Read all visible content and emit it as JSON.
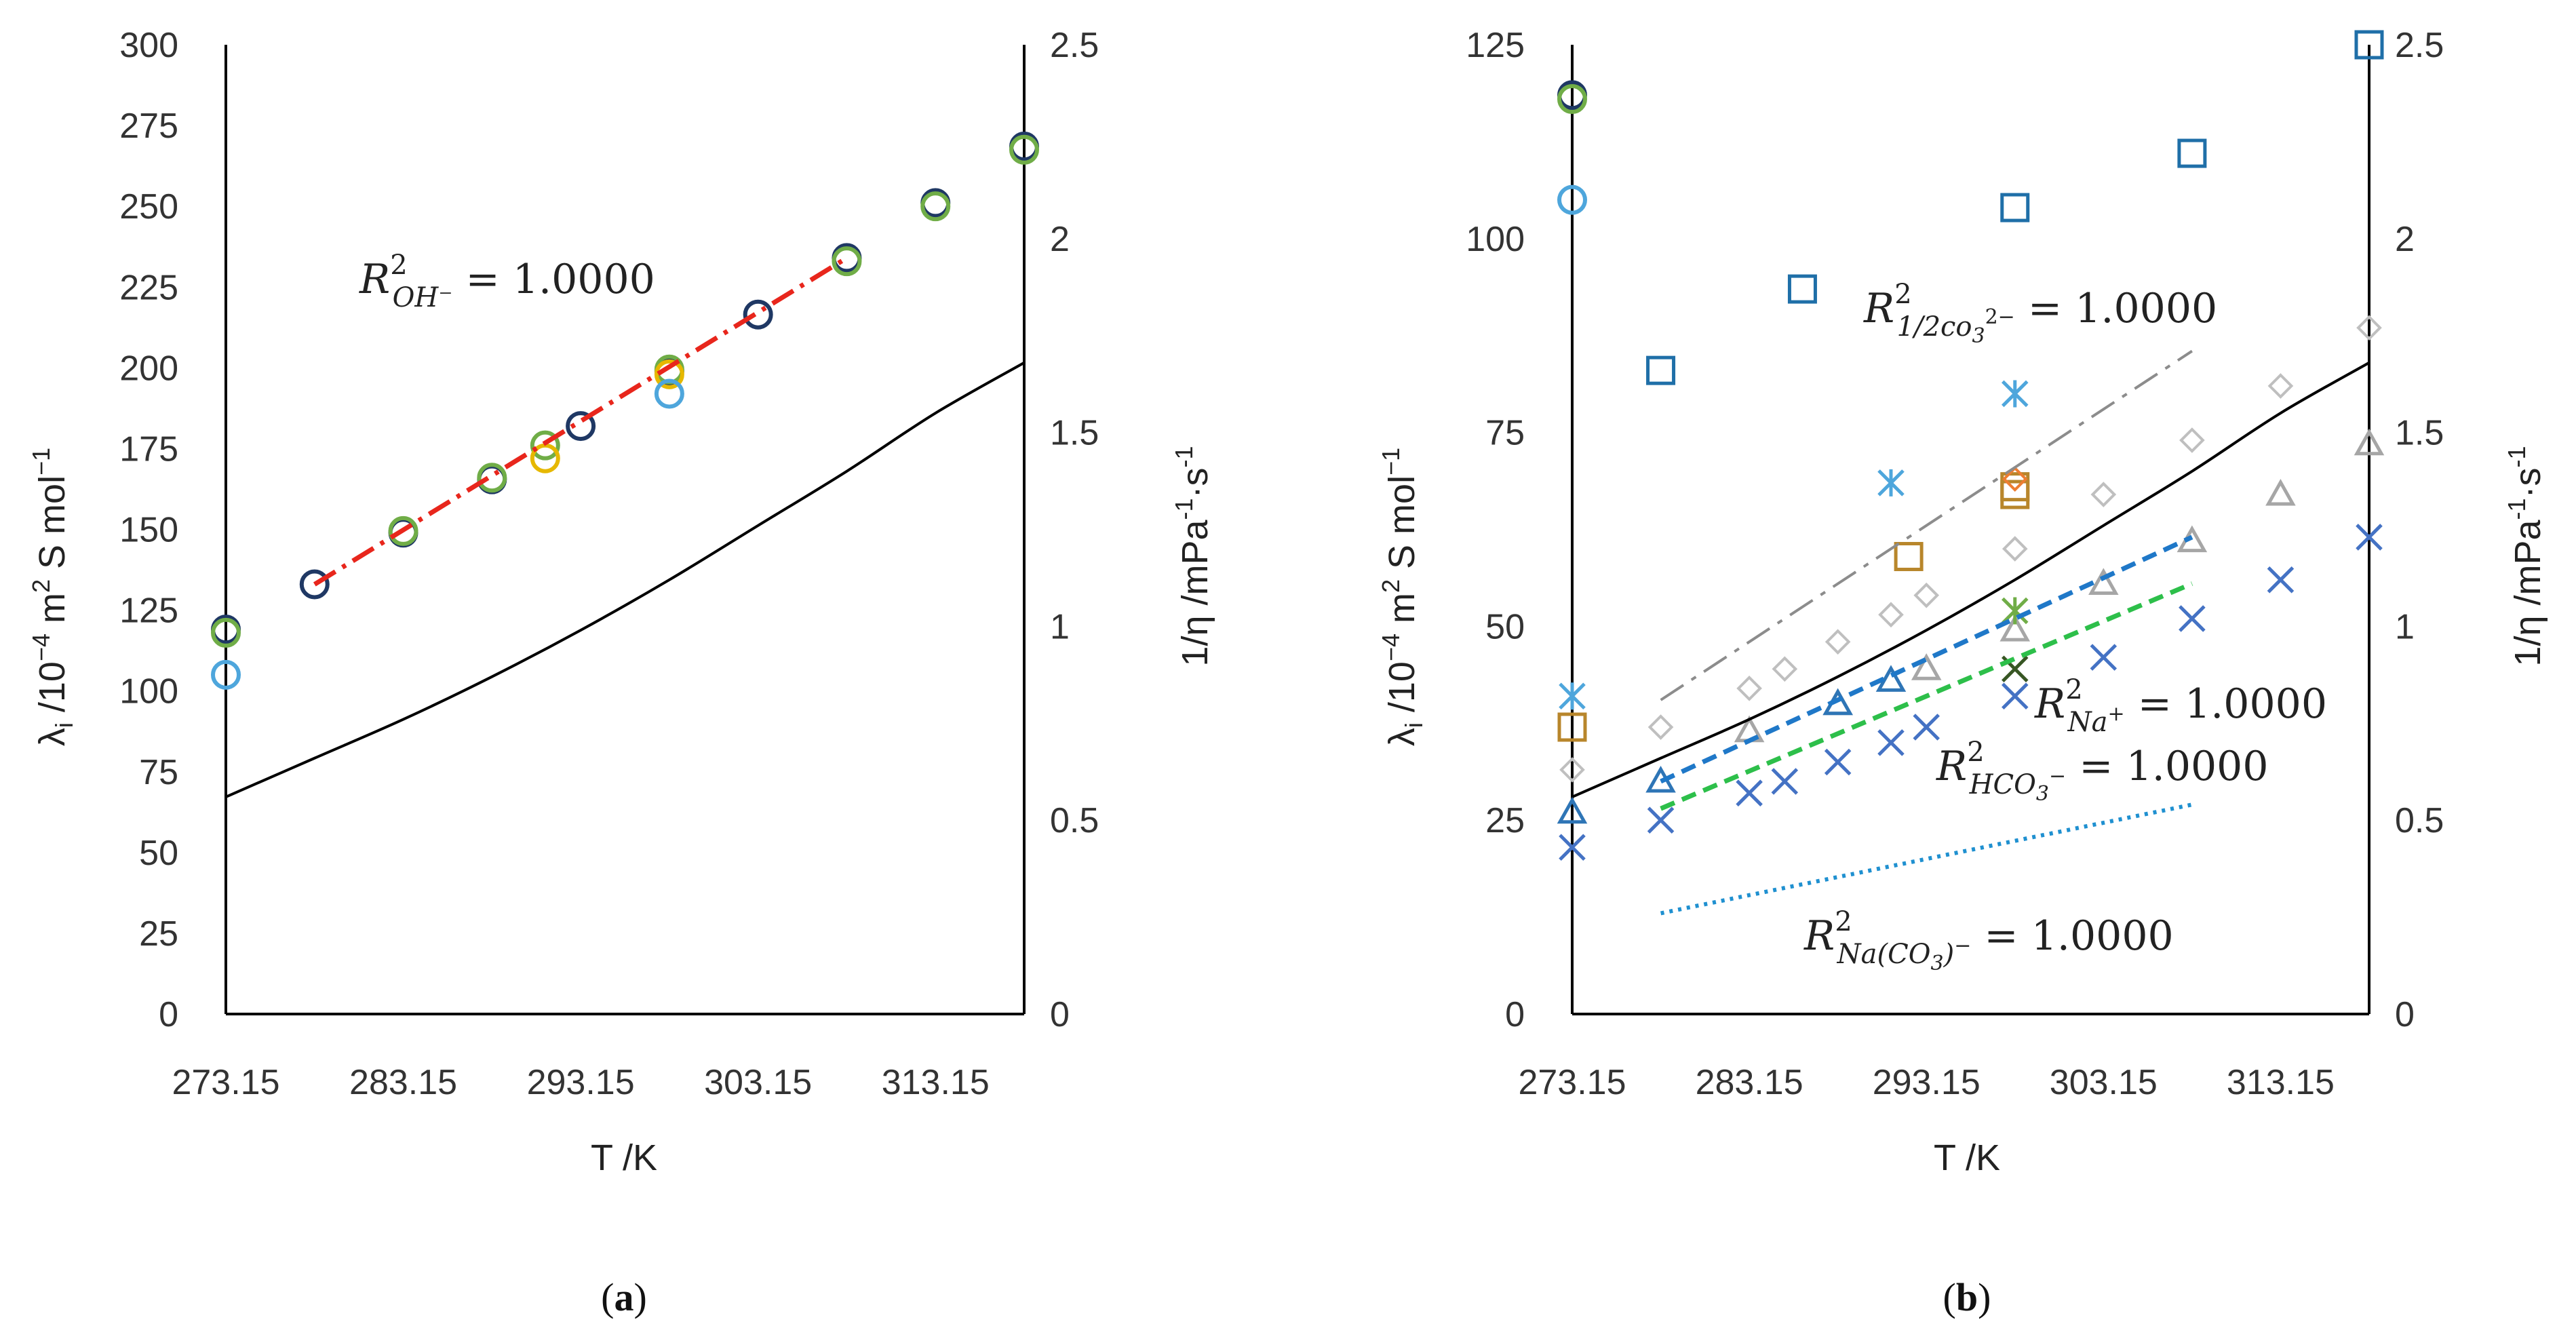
{
  "figure": {
    "panels": [
      {
        "label": "(a)",
        "label_letter": "a"
      },
      {
        "label": "(b)",
        "label_letter": "b"
      }
    ]
  },
  "chart_data": [
    {
      "type": "scatter",
      "panel": "a",
      "xlabel": "T /K",
      "ylabel": "λi /10−4 m2 S mol−1",
      "ylabel_parts": {
        "lambda": "λ",
        "sub": "i",
        "mid": " /10",
        "exp1": "−4",
        "mid2": " m",
        "exp2": "2",
        "mid3": " S mol",
        "exp3": "−1"
      },
      "y2label": "1/η /mPa−1·s−1",
      "y2label_parts": {
        "base": "1/η /mPa",
        "exp1": "-1",
        "mid": "·s",
        "exp2": "-1"
      },
      "xlim": [
        273.15,
        318.15
      ],
      "ylim": [
        0,
        300
      ],
      "y2lim": [
        0,
        2.5
      ],
      "x_ticks": [
        "273.15",
        "283.15",
        "293.15",
        "303.15",
        "313.15"
      ],
      "x_tick_values": [
        273.15,
        283.15,
        293.15,
        303.15,
        313.15
      ],
      "y_ticks": [
        "0",
        "25",
        "50",
        "75",
        "100",
        "125",
        "150",
        "175",
        "200",
        "225",
        "250",
        "275",
        "300"
      ],
      "y2_ticks": [
        "0",
        "0.5",
        "1",
        "1.5",
        "2",
        "2.5"
      ],
      "annotation": {
        "text": "R²OH⁻ = 1.0000",
        "R": "R",
        "sup": "2",
        "sub": "OH⁻",
        "eq": " = 1.0000"
      },
      "series": [
        {
          "name": "OH- dark navy circles",
          "marker": "circle",
          "color": "#1f3864",
          "x": [
            273.15,
            278.15,
            283.15,
            288.15,
            293.15,
            298.15,
            303.15,
            308.15,
            313.15,
            318.15
          ],
          "y": [
            119,
            133,
            149,
            165.5,
            182,
            199,
            216.5,
            234,
            251,
            268.5
          ]
        },
        {
          "name": "OH- green circles",
          "marker": "circle",
          "color": "#70ad47",
          "x": [
            273.15,
            283.15,
            288.15,
            291.15,
            298.15,
            308.15,
            313.15,
            318.15
          ],
          "y": [
            118,
            149.5,
            166,
            176,
            199.5,
            233,
            250,
            267.5
          ]
        },
        {
          "name": "OH- yellow circles",
          "marker": "circle",
          "color": "#e6b800",
          "x": [
            291.15,
            298.15
          ],
          "y": [
            172,
            198
          ]
        },
        {
          "name": "OH- light blue circles",
          "marker": "circle",
          "color": "#4ea6dc",
          "x": [
            273.15,
            298.15
          ],
          "y": [
            105,
            192
          ]
        },
        {
          "name": "OH- fit",
          "type": "line",
          "style": "dashdot",
          "color": "#e8261c",
          "x": [
            278.15,
            308.15
          ],
          "y": [
            133,
            234
          ]
        },
        {
          "name": "1/eta",
          "type": "line",
          "style": "solid",
          "color": "#000000",
          "axis": "y2",
          "x": [
            273.15,
            278.15,
            283.15,
            288.15,
            293.15,
            298.15,
            303.15,
            308.15,
            313.15,
            318.15
          ],
          "y": [
            0.56,
            0.66,
            0.76,
            0.87,
            0.99,
            1.12,
            1.26,
            1.4,
            1.55,
            1.68
          ]
        }
      ]
    },
    {
      "type": "scatter",
      "panel": "b",
      "xlabel": "T /K",
      "ylabel": "λi /10−4 m2 S mol−1",
      "y2label": "1/η /mPa−1·s−1",
      "xlim": [
        273.15,
        318.15
      ],
      "ylim": [
        0,
        125
      ],
      "y2lim": [
        0,
        2.5
      ],
      "x_ticks": [
        "273.15",
        "283.15",
        "293.15",
        "303.15",
        "313.15"
      ],
      "x_tick_values": [
        273.15,
        283.15,
        293.15,
        303.15,
        313.15
      ],
      "y_ticks": [
        "0",
        "25",
        "50",
        "75",
        "100",
        "125"
      ],
      "y2_ticks": [
        "0",
        "0.5",
        "1",
        "1.5",
        "2",
        "2.5"
      ],
      "annotations": [
        {
          "text": "R²1/2co3²⁻ = 1.0000",
          "R": "R",
          "sup": "2",
          "sub": "1/2co",
          "subsub": "3",
          "subsup": "2−",
          "eq": " = 1.0000"
        },
        {
          "text": "R²Na+ = 1.0000",
          "R": "R",
          "sup": "2",
          "sub": "Na",
          "subsup": "+",
          "eq": " = 1.0000"
        },
        {
          "text": "R²HCO3⁻ = 1.0000",
          "R": "R",
          "sup": "2",
          "sub": "HCO",
          "subsub": "3",
          "subsup": "−",
          "eq": " = 1.0000"
        },
        {
          "text": "R²Na(CO3)⁻ = 1.0000",
          "R": "R",
          "sup": "2",
          "sub": "Na(CO",
          "subsub": "3",
          "sub2": ")",
          "subsup": "−",
          "eq": " = 1.0000"
        }
      ],
      "series": [
        {
          "name": "OH- circles",
          "marker": "circle",
          "color": "#1f3864",
          "x": [
            273.15,
            273.15,
            273.15
          ],
          "y": [
            118.5,
            118,
            105
          ],
          "colors": [
            "#1f3864",
            "#70ad47",
            "#4ea6dc"
          ]
        },
        {
          "name": "CO3 2- squares (blue)",
          "marker": "square",
          "color": "#1f6fa8",
          "x": [
            278.15,
            286.15,
            298.15,
            308.15,
            318.15
          ],
          "y": [
            83,
            93.5,
            104,
            111,
            125
          ]
        },
        {
          "name": "CO3 2- squares (brown)",
          "marker": "square",
          "color": "#b8862b",
          "x": [
            273.15,
            292.15,
            298.15,
            298.15
          ],
          "y": [
            37,
            59,
            67,
            68
          ]
        },
        {
          "name": "Na+ diamonds",
          "marker": "diamond",
          "color": "#bfbfbf",
          "x": [
            273.15,
            278.15,
            283.15,
            285.15,
            288.15,
            291.15,
            293.15,
            298.15,
            303.15,
            308.15,
            313.15,
            318.15
          ],
          "y": [
            31.5,
            37,
            42,
            44.5,
            48,
            51.5,
            54,
            60,
            67,
            74,
            81,
            88.5
          ]
        },
        {
          "name": "Na+ diamond highlights",
          "marker": "diamond",
          "color": "#ed7d31",
          "x": [
            298.15
          ],
          "y": [
            69
          ]
        },
        {
          "name": "triangles grey",
          "marker": "triangle",
          "color": "#a6a6a6",
          "x": [
            283.15,
            288.15,
            293.15,
            298.15,
            303.15,
            308.15,
            313.15,
            318.15
          ],
          "y": [
            36.5,
            40,
            44.5,
            49.5,
            55.5,
            61,
            67,
            73.5
          ]
        },
        {
          "name": "triangles blue",
          "marker": "triangle",
          "color": "#2e75b6",
          "x": [
            273.15,
            278.15,
            288.15,
            291.15
          ],
          "y": [
            26,
            30,
            40,
            43
          ]
        },
        {
          "name": "asterisks",
          "marker": "asterisk",
          "color": "#4ea6dc",
          "x": [
            273.15,
            291.15,
            298.15
          ],
          "y": [
            41,
            68.5,
            80
          ]
        },
        {
          "name": "asterisk green",
          "marker": "asterisk",
          "color": "#70ad47",
          "x": [
            298.15
          ],
          "y": [
            52
          ]
        },
        {
          "name": "crosses blue",
          "marker": "cross",
          "color": "#4472c4",
          "x": [
            273.15,
            278.15,
            283.15,
            285.15,
            288.15,
            291.15,
            293.15,
            298.15,
            303.15,
            308.15,
            313.15,
            318.15
          ],
          "y": [
            21.5,
            25,
            28.5,
            30,
            32.5,
            35,
            37,
            41,
            46,
            51,
            56,
            61.5
          ]
        },
        {
          "name": "cross dark",
          "marker": "cross",
          "color": "#375623",
          "x": [
            298.15
          ],
          "y": [
            44.5
          ]
        },
        {
          "name": "CO3 fit",
          "type": "line",
          "style": "dashdot",
          "color": "#8c8c8c",
          "x": [
            278.15,
            308.15
          ],
          "y": [
            40.5,
            85.5
          ]
        },
        {
          "name": "Na+ fit",
          "type": "line",
          "style": "dashed",
          "color": "#1f78c8",
          "x": [
            278.15,
            308.15
          ],
          "y": [
            30,
            61.5
          ]
        },
        {
          "name": "HCO3- fit",
          "type": "line",
          "style": "dashed",
          "color": "#2dbf4a",
          "x": [
            278.15,
            308.15
          ],
          "y": [
            26.5,
            55.5
          ]
        },
        {
          "name": "NaCO3- fit",
          "type": "line",
          "style": "dotted",
          "color": "#1f90d0",
          "x": [
            278.15,
            308.15
          ],
          "y": [
            13,
            27
          ]
        },
        {
          "name": "1/eta",
          "type": "line",
          "style": "solid",
          "color": "#000000",
          "axis": "y2",
          "x": [
            273.15,
            278.15,
            283.15,
            288.15,
            293.15,
            298.15,
            303.15,
            308.15,
            313.15,
            318.15
          ],
          "y": [
            0.56,
            0.66,
            0.76,
            0.87,
            0.99,
            1.12,
            1.26,
            1.4,
            1.55,
            1.68
          ]
        }
      ]
    }
  ]
}
